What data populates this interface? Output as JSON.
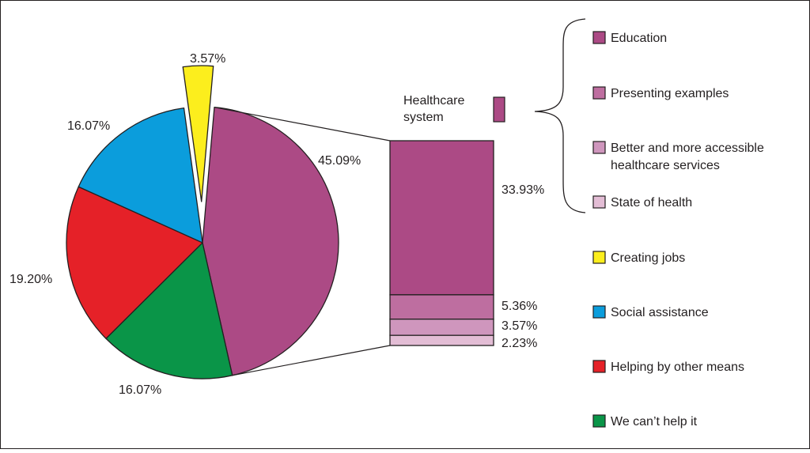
{
  "chart_data": {
    "type": "pie",
    "slices": [
      {
        "label": "Healthcare system",
        "value": 45.09,
        "value_label": "45.09%",
        "color": "#ac4a85"
      },
      {
        "label": "We can’t help it",
        "value": 16.07,
        "value_label": "16.07%",
        "color": "#0a9548"
      },
      {
        "label": "Helping by other means",
        "value": 19.2,
        "value_label": "19.20%",
        "color": "#e52128"
      },
      {
        "label": "Social assistance",
        "value": 16.07,
        "value_label": "16.07%",
        "color": "#0b9ddc"
      },
      {
        "label": "Creating jobs",
        "value": 3.57,
        "value_label": "3.57%",
        "color": "#fcee1d",
        "exploded": true
      }
    ],
    "breakdown": {
      "parent": "Healthcare system",
      "parent_label_lines": [
        "Healthcare",
        "system"
      ],
      "segments": [
        {
          "label": "Education",
          "value": 33.93,
          "value_label": "33.93%",
          "color": "#ac4a85"
        },
        {
          "label": "Presenting examples",
          "value": 5.36,
          "value_label": "5.36%",
          "color": "#be6ea0"
        },
        {
          "label": "Better and more accessible healthcare services",
          "value": 3.57,
          "value_label": "3.57%",
          "color": "#cf96bd"
        },
        {
          "label": "State of health",
          "value": 2.23,
          "value_label": "2.23%",
          "color": "#e3bdd5"
        }
      ]
    },
    "legend": {
      "placement": "right",
      "items": [
        {
          "lines": [
            "Education"
          ],
          "color": "#ac4a85"
        },
        {
          "lines": [
            "Presenting examples"
          ],
          "color": "#be6ea0"
        },
        {
          "lines": [
            "Better and more accessible",
            "healthcare services"
          ],
          "color": "#cf96bd"
        },
        {
          "lines": [
            "State of health"
          ],
          "color": "#e3bdd5"
        },
        {
          "lines": [
            "Creating jobs"
          ],
          "color": "#fcee1d"
        },
        {
          "lines": [
            "Social assistance"
          ],
          "color": "#0b9ddc"
        },
        {
          "lines": [
            "Helping by other means"
          ],
          "color": "#e52128"
        },
        {
          "lines": [
            "We can’t help it"
          ],
          "color": "#0a9548"
        }
      ]
    }
  }
}
